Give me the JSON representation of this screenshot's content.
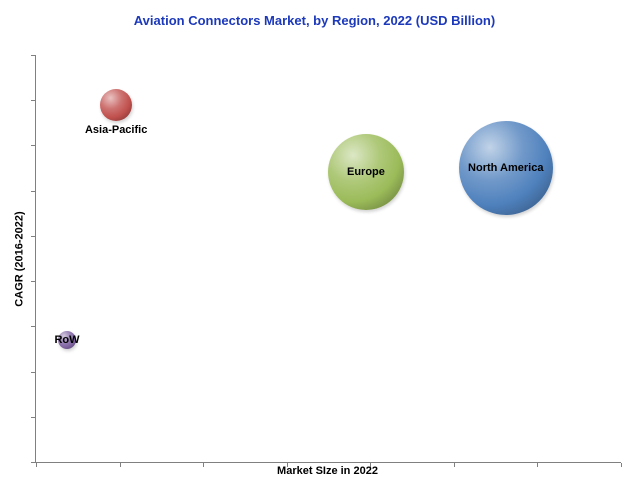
{
  "title": "Aviation Connectors Market, by Region, 2022 (USD Billion)",
  "colors": {
    "title": "#1C39BB",
    "axis": "#808080",
    "label_text": "#000000",
    "north_america_bubble": "#4F81BD",
    "europe_bubble": "#9BBB59",
    "asia_pacific_bubble": "#C0504D",
    "row_bubble": "#8064A2"
  },
  "axes": {
    "x_label": "Market SIze in 2022",
    "y_label": "CAGR (2016-2022)"
  },
  "chart_data": {
    "type": "scatter",
    "title": "Aviation Connectors Market, by Region, 2022 (USD Billion)",
    "xlabel": "Market SIze in 2022",
    "ylabel": "CAGR (2016-2022)",
    "xlim": [
      0,
      1
    ],
    "ylim": [
      0,
      1
    ],
    "grid": false,
    "legend": "none",
    "axis_numeric_labels": false,
    "x_tick_count": 8,
    "y_tick_count": 10,
    "points": [
      {
        "label": "North America",
        "x": 0.803,
        "y": 0.722,
        "radius_px": 47,
        "color": "#4F81BD",
        "label_position": "center"
      },
      {
        "label": "Europe",
        "x": 0.564,
        "y": 0.713,
        "radius_px": 38,
        "color": "#9BBB59",
        "label_position": "center"
      },
      {
        "label": "Asia-Pacific",
        "x": 0.137,
        "y": 0.877,
        "radius_px": 16,
        "color": "#C0504D",
        "label_position": "below"
      },
      {
        "label": "RoW",
        "x": 0.053,
        "y": 0.3,
        "radius_px": 9,
        "color": "#8064A2",
        "label_position": "center"
      }
    ]
  }
}
